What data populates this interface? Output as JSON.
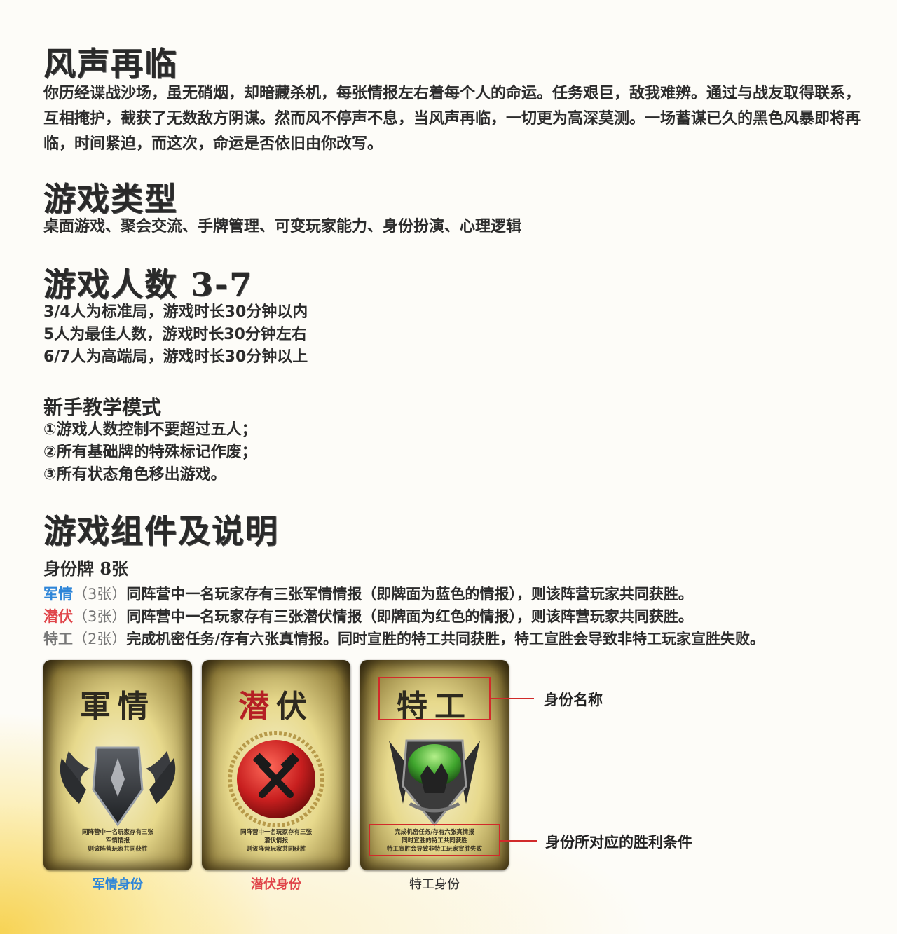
{
  "section1": {
    "title": "风声再临",
    "body": "你历经谍战沙场，虽无硝烟，却暗藏杀机，每张情报左右着每个人的命运。任务艰巨，敌我难辨。通过与战友取得联系，互相掩护，截获了无数敌方阴谋。然而风不停声不息，当风声再临，一切更为高深莫测。一场蓄谋已久的黑色风暴即将再临，时间紧迫，而这次，命运是否依旧由你改写。"
  },
  "section2": {
    "title": "游戏类型",
    "body": "桌面游戏、聚会交流、手牌管理、可变玩家能力、身份扮演、心理逻辑"
  },
  "section3": {
    "title": "游戏人数 3-7",
    "lines": [
      "3/4人为标准局，游戏时长30分钟以内",
      "5人为最佳人数，游戏时长30分钟左右",
      "6/7人为高端局，游戏时长30分钟以上"
    ]
  },
  "section4": {
    "title": "新手教学模式",
    "lines": [
      "①游戏人数控制不要超过五人；",
      "②所有基础牌的特殊标记作废；",
      "③所有状态角色移出游戏。"
    ]
  },
  "section5": {
    "title": "游戏组件及说明",
    "subtitle": "身份牌 8张",
    "roles": [
      {
        "name": "军情",
        "count": "（3张）",
        "desc": "同阵营中一名玩家存有三张军情情报（即牌面为蓝色的情报），则该阵营玩家共同获胜。",
        "color": "#2f86d8"
      },
      {
        "name": "潜伏",
        "count": "（3张）",
        "desc": "同阵营中一名玩家存有三张潜伏情报（即牌面为红色的情报），则该阵营玩家共同获胜。",
        "color": "#e0454a"
      },
      {
        "name": "特工",
        "count": "（2张）",
        "desc": "完成机密任务/存有六张真情报。同时宣胜的特工共同获胜，特工宣胜会导致非特工玩家宣胜失败。",
        "color": "#777777"
      }
    ]
  },
  "cards": [
    {
      "title": "軍情",
      "text": [
        "同阵营中一名玩家存有三张",
        "军情情报",
        "则该阵营玩家共同获胜"
      ],
      "caption": "军情身份",
      "caption_color": "#2f86d8",
      "emblem": "winged-shield-emblem"
    },
    {
      "title": "潜伏",
      "text": [
        "同阵营中一名玩家存有三张",
        "潜伏情报",
        "则该阵营玩家共同获胜"
      ],
      "caption": "潜伏身份",
      "caption_color": "#e0454a",
      "emblem": "hammer-medal-emblem"
    },
    {
      "title": "特工",
      "text": [
        "完成机密任务/存有六张真情报",
        "同时宣胜的特工共同获胜",
        "特工宣胜会导致非特工玩家宣胜失败"
      ],
      "caption": "特工身份",
      "caption_color": "#333333",
      "emblem": "green-shield-emblem"
    }
  ],
  "annotations": {
    "name_label": "身份名称",
    "condition_label": "身份所对应的胜利条件",
    "accent": "#d12a2a"
  }
}
